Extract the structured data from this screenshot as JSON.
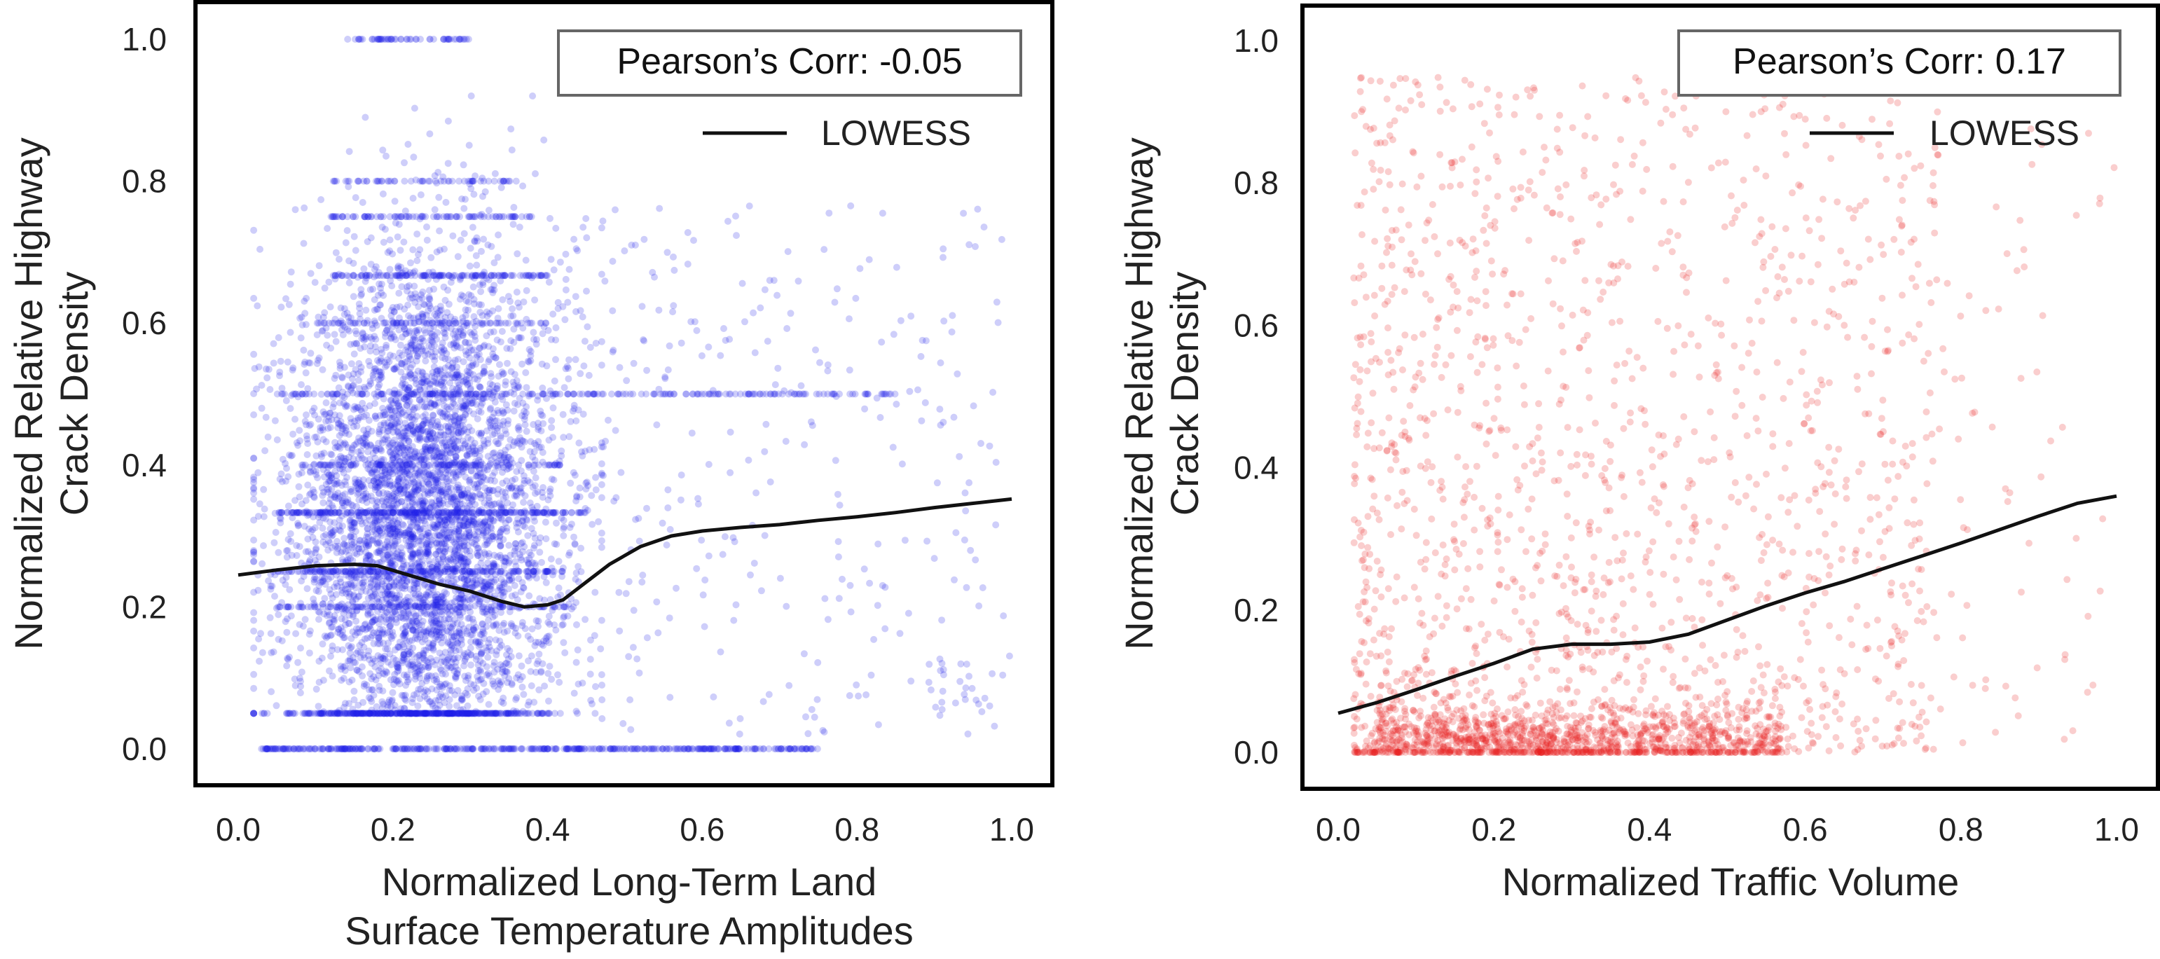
{
  "chart_data": [
    {
      "type": "scatter",
      "color": "#1f1fe6",
      "xlim": [
        0,
        1
      ],
      "ylim": [
        0,
        1
      ],
      "xlabel_lines": [
        "Normalized Long-Term Land",
        "Surface  Temperature Amplitudes"
      ],
      "ylabel_lines": [
        "Normalized Relative Highway",
        "Crack Density"
      ],
      "xticks": [
        "0.0",
        "0.2",
        "0.4",
        "0.6",
        "0.8",
        "1.0"
      ],
      "yticks": [
        "0.0",
        "0.2",
        "0.4",
        "0.6",
        "0.8",
        "1.0"
      ],
      "annotation": "Pearson’s Corr: -0.05",
      "legend": [
        {
          "label": "LOWESS",
          "color": "#000000"
        }
      ],
      "legend_location": "top-right",
      "grid": false,
      "series": [
        {
          "name": "LOWESS",
          "kind": "line",
          "x": [
            0.0,
            0.05,
            0.1,
            0.15,
            0.18,
            0.22,
            0.26,
            0.3,
            0.34,
            0.37,
            0.4,
            0.42,
            0.45,
            0.48,
            0.52,
            0.56,
            0.6,
            0.65,
            0.7,
            0.75,
            0.8,
            0.85,
            0.9,
            0.95,
            1.0
          ],
          "y": [
            0.245,
            0.252,
            0.258,
            0.26,
            0.258,
            0.245,
            0.232,
            0.222,
            0.208,
            0.2,
            0.203,
            0.21,
            0.235,
            0.26,
            0.285,
            0.3,
            0.307,
            0.312,
            0.316,
            0.322,
            0.327,
            0.333,
            0.34,
            0.346,
            0.352
          ]
        }
      ],
      "scatter_description": "Dense band of points for x in 0.03-0.45, y in 0.05-0.9, with horizontal streaks at y=0, 0.5, 1.0; sparse points for x above 0.45"
    },
    {
      "type": "scatter",
      "color": "#e61f1f",
      "xlim": [
        0,
        1
      ],
      "ylim": [
        0,
        1
      ],
      "xlabel_lines": [
        "Normalized Traffic Volume"
      ],
      "ylabel_lines": [
        "Normalized Relative Highway",
        "Crack Density"
      ],
      "xticks": [
        "0.0",
        "0.2",
        "0.4",
        "0.6",
        "0.8",
        "1.0"
      ],
      "yticks": [
        "0.0",
        "0.2",
        "0.4",
        "0.6",
        "0.8",
        "1.0"
      ],
      "annotation": "Pearson’s Corr: 0.17",
      "legend": [
        {
          "label": "LOWESS",
          "color": "#000000"
        }
      ],
      "legend_location": "top-right",
      "grid": false,
      "series": [
        {
          "name": "LOWESS",
          "kind": "line",
          "x": [
            0.0,
            0.05,
            0.1,
            0.15,
            0.2,
            0.25,
            0.3,
            0.35,
            0.4,
            0.45,
            0.5,
            0.55,
            0.6,
            0.65,
            0.7,
            0.75,
            0.8,
            0.85,
            0.9,
            0.95,
            1.0
          ],
          "y": [
            0.055,
            0.07,
            0.088,
            0.107,
            0.125,
            0.145,
            0.152,
            0.152,
            0.155,
            0.166,
            0.186,
            0.206,
            0.224,
            0.24,
            0.258,
            0.276,
            0.294,
            0.313,
            0.332,
            0.35,
            0.36
          ]
        }
      ],
      "scatter_description": "Points concentrated near y=0 for x in 0.05-0.55, spread across y up to 1.0, sparser at large x"
    }
  ]
}
